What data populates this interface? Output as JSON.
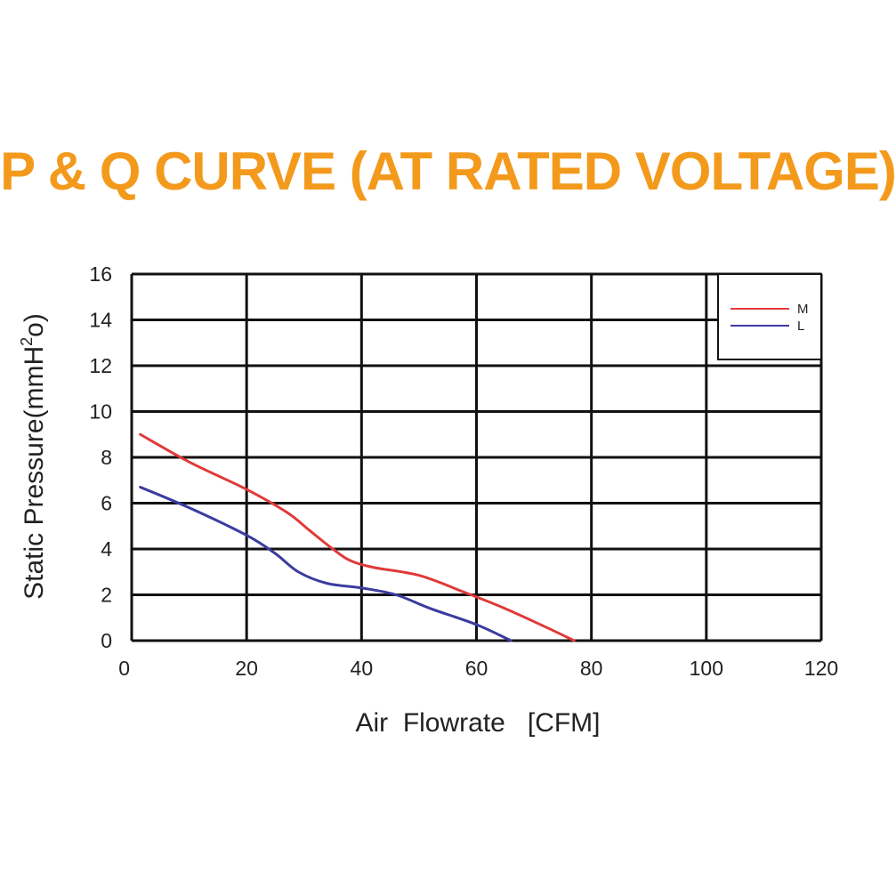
{
  "chart_data": {
    "type": "line",
    "title": "P & Q CURVE (AT RATED VOLTAGE)",
    "xlabel": "Air  Flowrate   [CFM]",
    "ylabel_parts": [
      "Static Pressure(mmH",
      "2",
      "o)"
    ],
    "xlim": [
      0,
      120
    ],
    "ylim": [
      0,
      16
    ],
    "xticks": [
      "0",
      "20",
      "40",
      "60",
      "80",
      "100",
      "120"
    ],
    "yticks": [
      "0",
      "2",
      "4",
      "6",
      "8",
      "10",
      "12",
      "14",
      "16"
    ],
    "grid": true,
    "legend_position": "top-right",
    "series": [
      {
        "name": "M",
        "color": "#e03a3a",
        "points": [
          [
            1.5,
            9.0
          ],
          [
            10,
            7.8
          ],
          [
            20,
            6.6
          ],
          [
            27,
            5.6
          ],
          [
            31,
            4.8
          ],
          [
            35,
            4.0
          ],
          [
            38,
            3.5
          ],
          [
            42,
            3.2
          ],
          [
            50,
            2.85
          ],
          [
            58,
            2.1
          ],
          [
            65,
            1.4
          ],
          [
            72,
            0.6
          ],
          [
            77,
            0
          ]
        ]
      },
      {
        "name": "L",
        "color": "#3b3ba0",
        "points": [
          [
            1.5,
            6.7
          ],
          [
            10,
            5.8
          ],
          [
            20,
            4.6
          ],
          [
            25,
            3.8
          ],
          [
            29,
            3.0
          ],
          [
            34,
            2.5
          ],
          [
            40,
            2.3
          ],
          [
            46,
            2.0
          ],
          [
            52,
            1.4
          ],
          [
            60,
            0.7
          ],
          [
            66,
            0
          ]
        ]
      }
    ]
  }
}
